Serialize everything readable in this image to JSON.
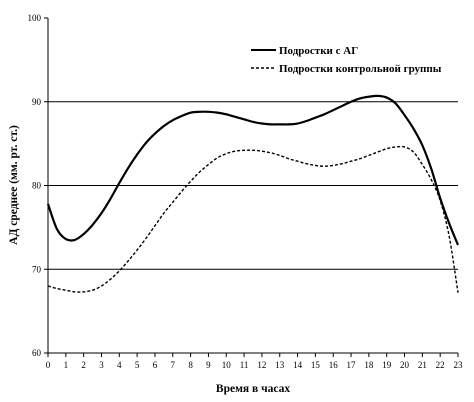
{
  "chart_data": {
    "type": "line",
    "xlabel": "Время в часах",
    "ylabel": "АД среднее (мм. рт. ст.)",
    "xlim": [
      0,
      23
    ],
    "ylim": [
      60,
      100
    ],
    "x_ticks": [
      0,
      1,
      2,
      3,
      4,
      5,
      6,
      7,
      8,
      9,
      10,
      11,
      12,
      13,
      14,
      15,
      16,
      17,
      18,
      19,
      20,
      21,
      22,
      23
    ],
    "y_ticks": [
      60,
      70,
      80,
      90,
      100
    ],
    "grid_y": [
      70,
      80,
      90
    ],
    "legend_position": "top-right",
    "series": [
      {
        "name": "Подростки с АГ",
        "style": "solid",
        "x": [
          0,
          0.5,
          1,
          1.5,
          2,
          2.5,
          3,
          3.5,
          4,
          4.5,
          5,
          5.5,
          6,
          6.5,
          7,
          7.5,
          8,
          8.5,
          9,
          9.5,
          10,
          10.5,
          11,
          11.5,
          12,
          12.5,
          13,
          13.5,
          14,
          14.5,
          15,
          15.5,
          16,
          16.5,
          17,
          17.5,
          18,
          18.5,
          19,
          19.5,
          20,
          20.5,
          21,
          21.5,
          22,
          22.5,
          23
        ],
        "values": [
          77.8,
          74.8,
          73.6,
          73.5,
          74.2,
          75.3,
          76.7,
          78.4,
          80.3,
          82.1,
          83.7,
          85.1,
          86.2,
          87.1,
          87.8,
          88.3,
          88.7,
          88.8,
          88.8,
          88.7,
          88.5,
          88.2,
          87.9,
          87.6,
          87.4,
          87.3,
          87.3,
          87.3,
          87.4,
          87.7,
          88.1,
          88.5,
          89.0,
          89.5,
          90.0,
          90.4,
          90.6,
          90.7,
          90.5,
          89.8,
          88.4,
          86.8,
          84.8,
          82.0,
          78.5,
          75.5,
          72.9
        ]
      },
      {
        "name": "Подростки контрольной группы",
        "style": "dashed",
        "x": [
          0,
          0.5,
          1,
          1.5,
          2,
          2.5,
          3,
          3.5,
          4,
          4.5,
          5,
          5.5,
          6,
          6.5,
          7,
          7.5,
          8,
          8.5,
          9,
          9.5,
          10,
          10.5,
          11,
          11.5,
          12,
          12.5,
          13,
          13.5,
          14,
          14.5,
          15,
          15.5,
          16,
          16.5,
          17,
          17.5,
          18,
          18.5,
          19,
          19.5,
          20,
          20.5,
          21,
          21.5,
          22,
          22.5,
          23
        ],
        "values": [
          68.0,
          67.7,
          67.5,
          67.3,
          67.3,
          67.5,
          68.0,
          68.8,
          69.8,
          71.0,
          72.3,
          73.7,
          75.2,
          76.7,
          78.0,
          79.3,
          80.5,
          81.6,
          82.5,
          83.3,
          83.8,
          84.1,
          84.2,
          84.2,
          84.1,
          83.9,
          83.6,
          83.2,
          82.9,
          82.6,
          82.4,
          82.3,
          82.4,
          82.6,
          82.9,
          83.2,
          83.6,
          84.0,
          84.4,
          84.6,
          84.6,
          84.0,
          82.5,
          80.7,
          78.2,
          74.0,
          67.2
        ]
      }
    ]
  }
}
